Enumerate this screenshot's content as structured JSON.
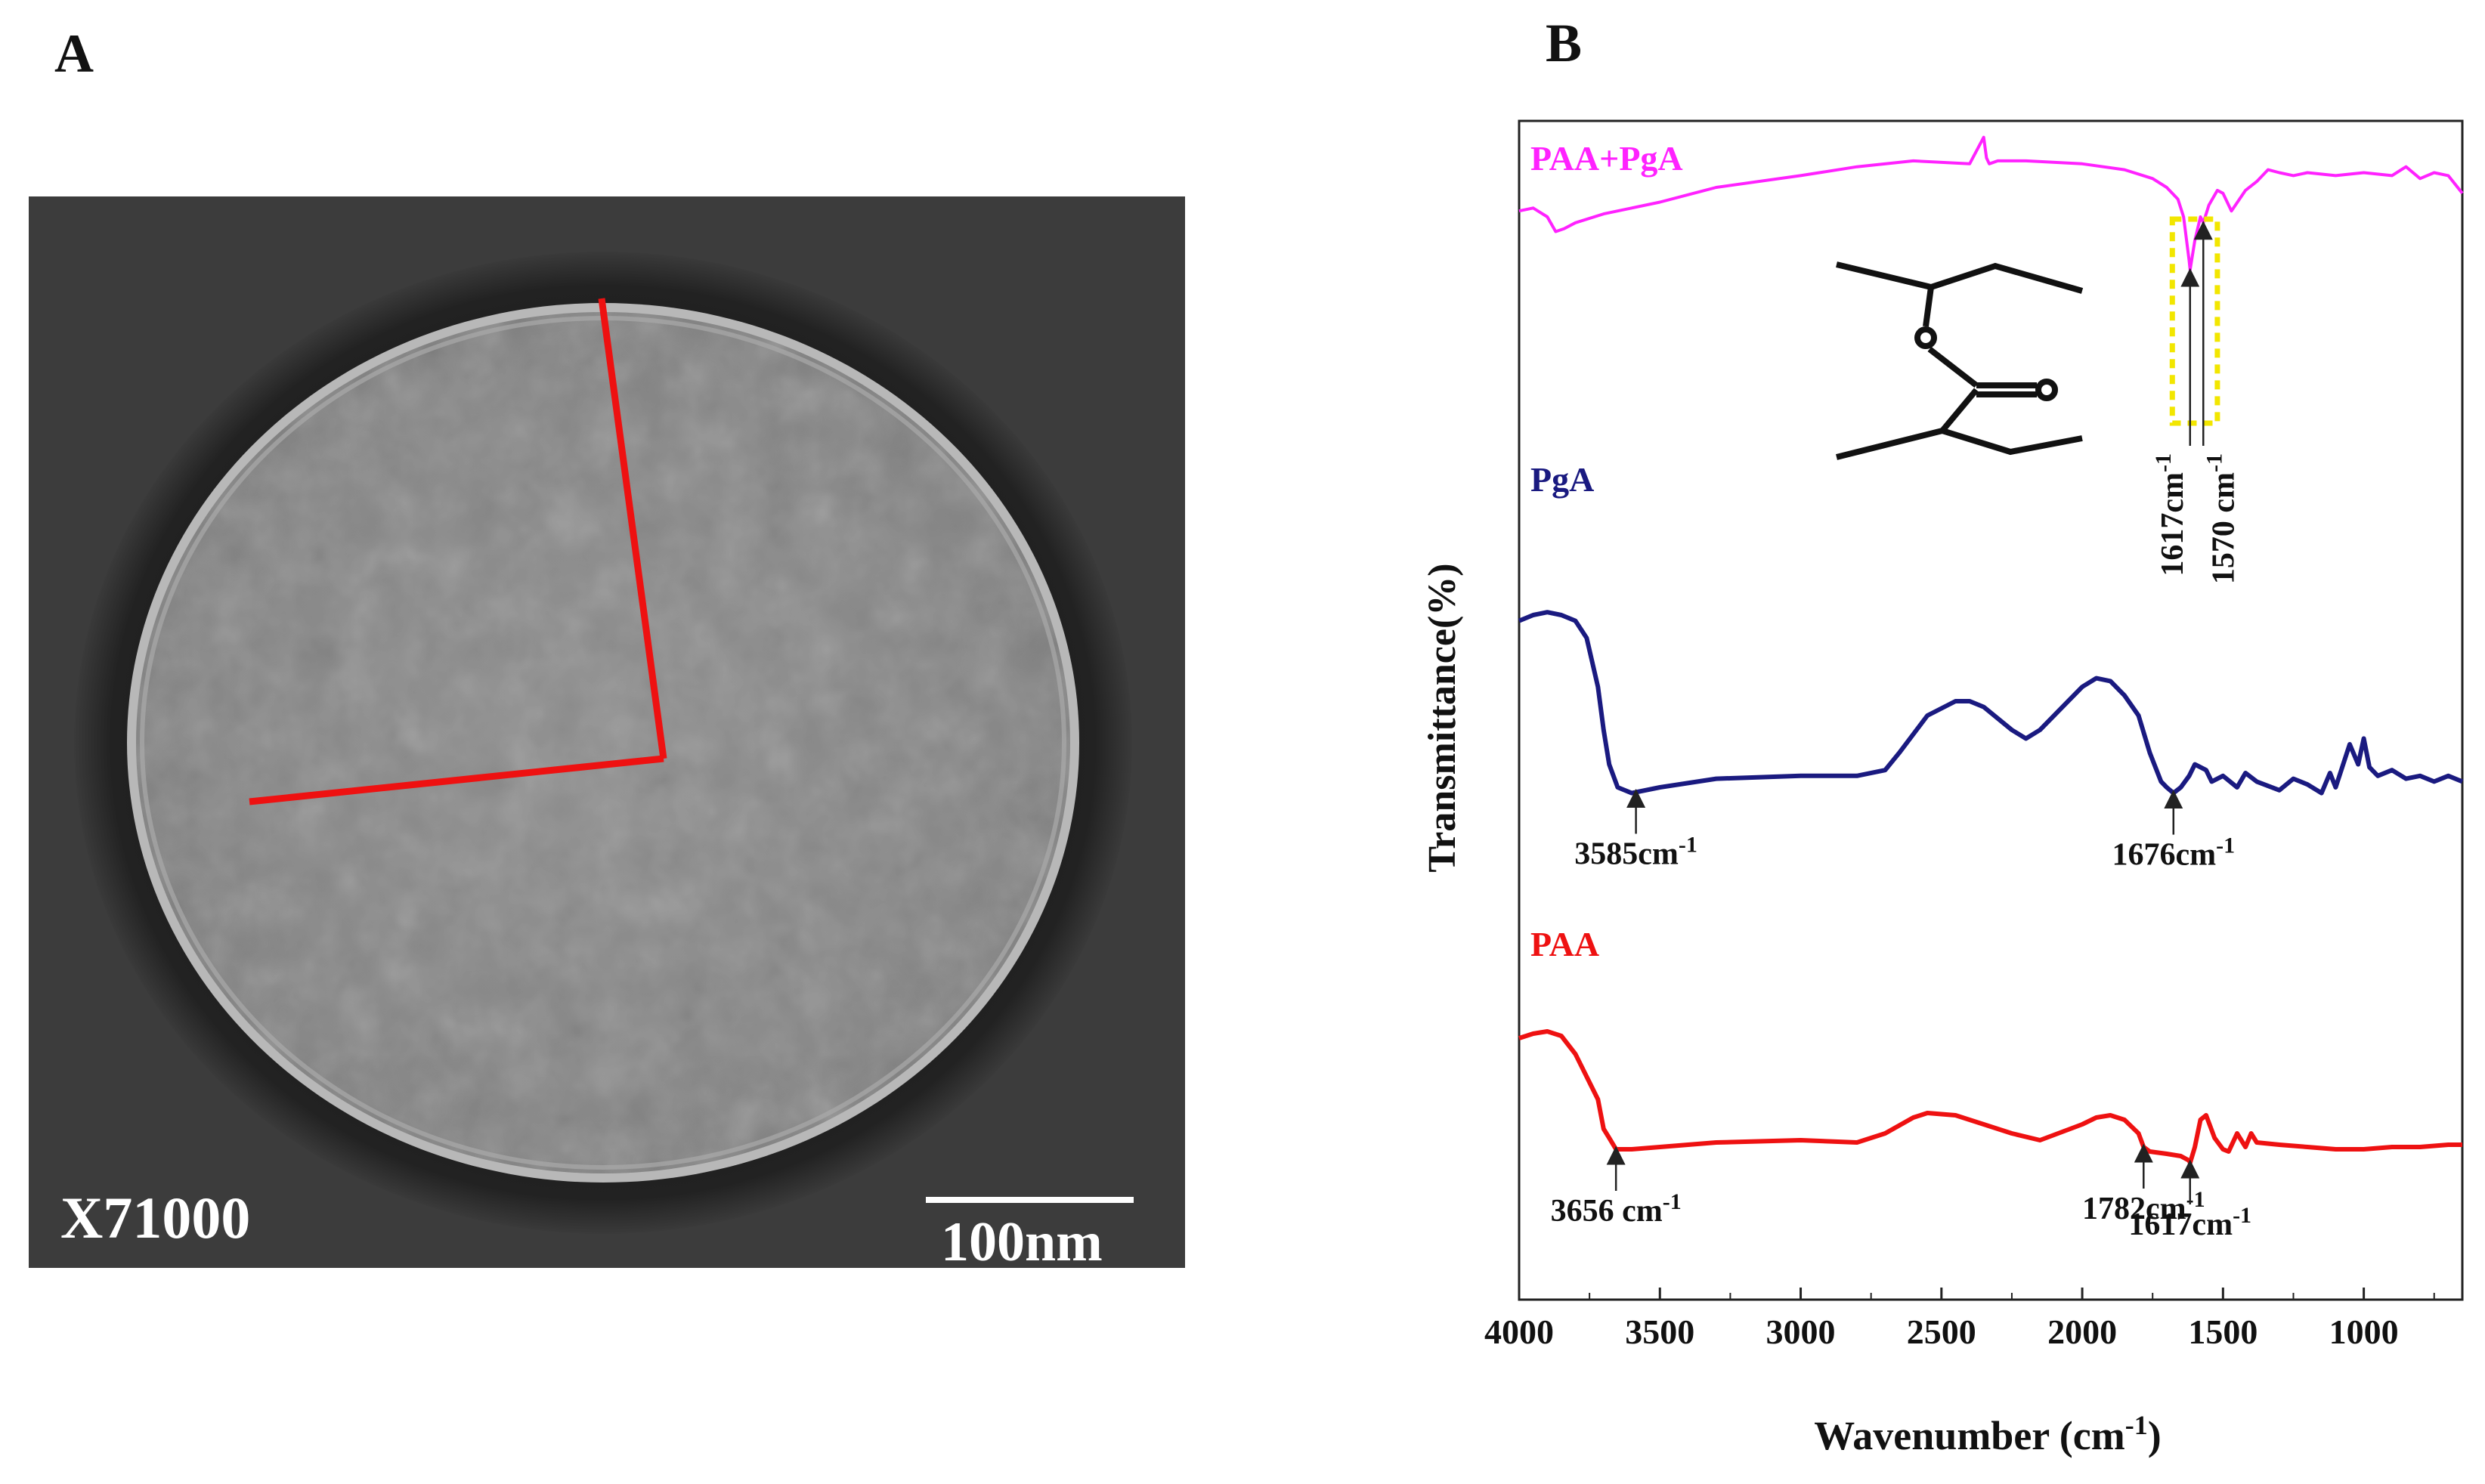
{
  "panel_a": {
    "letter": "A",
    "magnification": "X71000",
    "scale_bar_label": "100nm"
  },
  "panel_b": {
    "letter": "B"
  },
  "colors": {
    "paa_pga": "#ff22ff",
    "pga": "#1a1a80",
    "paa": "#ee1111",
    "highlight_box": "#f2e600",
    "radius_lines": "#ee1111"
  },
  "chart_data": {
    "type": "line",
    "title": "",
    "xlabel": "Wavenumber (cm",
    "xlabel_sup": "-1",
    "xlabel_close": ")",
    "ylabel": "Transmittance(%)",
    "xlim": [
      4000,
      650
    ],
    "x_reversed": true,
    "xticks": [
      4000,
      3500,
      3000,
      2500,
      2000,
      1500,
      1000
    ],
    "y_ticks_shown": false,
    "y_units": "arbitrary (stacked spectra)",
    "grid": false,
    "series": [
      {
        "name": "PAA+PgA",
        "key": "paa_pga",
        "label_text": "PAA+PgA",
        "x": [
          4000,
          3950,
          3900,
          3870,
          3840,
          3800,
          3700,
          3600,
          3500,
          3300,
          3000,
          2800,
          2600,
          2400,
          2350,
          2340,
          2330,
          2300,
          2200,
          2000,
          1850,
          1750,
          1700,
          1660,
          1640,
          1620,
          1617,
          1600,
          1580,
          1570,
          1550,
          1520,
          1500,
          1470,
          1420,
          1380,
          1340,
          1300,
          1250,
          1200,
          1100,
          1000,
          900,
          850,
          800,
          750,
          700,
          650
        ],
        "y": [
          72,
          73,
          70,
          65,
          66,
          68,
          71,
          73,
          75,
          80,
          84,
          87,
          89,
          88,
          97,
          90,
          88,
          89,
          89,
          88,
          86,
          83,
          80,
          76,
          70,
          55,
          52,
          62,
          70,
          68,
          74,
          79,
          78,
          72,
          79,
          82,
          86,
          85,
          84,
          85,
          84,
          85,
          84,
          87,
          83,
          85,
          84,
          78
        ]
      },
      {
        "name": "PgA",
        "key": "pga",
        "label_text": "PgA",
        "x": [
          4000,
          3950,
          3900,
          3850,
          3800,
          3760,
          3720,
          3700,
          3680,
          3650,
          3600,
          3500,
          3300,
          3000,
          2800,
          2700,
          2650,
          2550,
          2450,
          2400,
          2350,
          2250,
          2200,
          2150,
          2050,
          2000,
          1950,
          1900,
          1850,
          1800,
          1760,
          1720,
          1700,
          1676,
          1650,
          1620,
          1600,
          1560,
          1540,
          1500,
          1450,
          1420,
          1380,
          1300,
          1250,
          1200,
          1150,
          1120,
          1100,
          1050,
          1020,
          1000,
          980,
          950,
          900,
          850,
          800,
          750,
          700,
          650
        ],
        "y": [
          68,
          70,
          71,
          70,
          68,
          62,
          45,
          30,
          18,
          10,
          8,
          10,
          13,
          14,
          14,
          16,
          22,
          35,
          40,
          40,
          38,
          30,
          27,
          30,
          40,
          45,
          48,
          47,
          42,
          35,
          22,
          12,
          10,
          8,
          10,
          14,
          18,
          16,
          12,
          14,
          10,
          15,
          12,
          9,
          13,
          11,
          8,
          15,
          10,
          25,
          18,
          27,
          17,
          14,
          16,
          13,
          14,
          12,
          14,
          12
        ]
      },
      {
        "name": "PAA",
        "key": "paa",
        "label_text": "PAA",
        "x": [
          4000,
          3950,
          3900,
          3850,
          3800,
          3760,
          3720,
          3700,
          3680,
          3656,
          3600,
          3500,
          3300,
          3000,
          2800,
          2700,
          2600,
          2550,
          2450,
          2350,
          2250,
          2150,
          2000,
          1950,
          1900,
          1850,
          1800,
          1782,
          1760,
          1700,
          1650,
          1620,
          1617,
          1600,
          1580,
          1560,
          1530,
          1500,
          1480,
          1450,
          1420,
          1400,
          1380,
          1300,
          1200,
          1100,
          1000,
          900,
          800,
          700,
          650
        ],
        "y": [
          62,
          64,
          65,
          63,
          55,
          45,
          35,
          22,
          18,
          13,
          13,
          14,
          16,
          17,
          16,
          20,
          27,
          29,
          28,
          24,
          20,
          17,
          24,
          27,
          28,
          26,
          20,
          14,
          12,
          11,
          10,
          8,
          7,
          14,
          26,
          28,
          18,
          13,
          12,
          20,
          14,
          20,
          16,
          15,
          14,
          13,
          13,
          14,
          14,
          15,
          15
        ]
      }
    ],
    "annotations": [
      {
        "series": "paa_pga",
        "text": "1617cm",
        "sup": "-1",
        "x": 1617,
        "orientation": "vertical"
      },
      {
        "series": "paa_pga",
        "text": "1570 cm",
        "sup": "-1",
        "x": 1570,
        "orientation": "vertical"
      },
      {
        "series": "pga",
        "text": "3585cm",
        "sup": "-1",
        "x": 3585,
        "orientation": "horizontal"
      },
      {
        "series": "pga",
        "text": "1676cm",
        "sup": "-1",
        "x": 1676,
        "orientation": "horizontal"
      },
      {
        "series": "paa",
        "text": "3656 cm",
        "sup": "-1",
        "x": 3656,
        "orientation": "horizontal"
      },
      {
        "series": "paa",
        "text": "1782cm",
        "sup": "-1",
        "x": 1782,
        "orientation": "horizontal"
      },
      {
        "series": "paa",
        "text": "1617cm",
        "sup": "-1",
        "x": 1617,
        "orientation": "horizontal"
      }
    ],
    "highlight_region": {
      "series": "paa_pga",
      "x_from": 1680,
      "x_to": 1520
    }
  }
}
